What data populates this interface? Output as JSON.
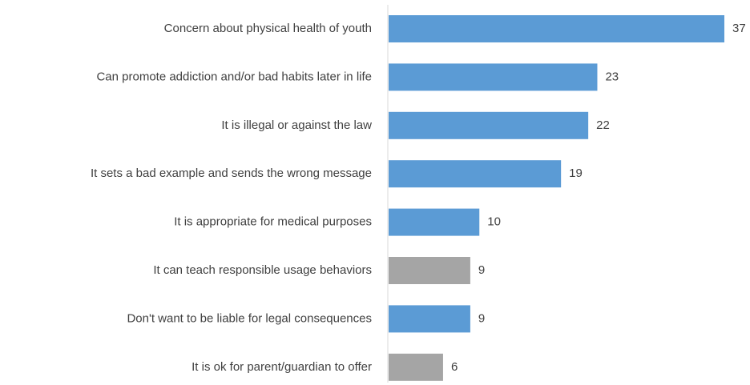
{
  "chart_data": {
    "type": "bar",
    "orientation": "horizontal",
    "categories": [
      "Concern about physical health of youth",
      "Can promote addiction and/or bad habits later in life",
      "It is illegal or against the law",
      "It sets a bad example and sends the wrong message",
      "It is appropriate for medical purposes",
      "It can teach responsible usage behaviors",
      "Don't want to be liable for legal consequences",
      "It is ok for parent/guardian to offer"
    ],
    "values": [
      37,
      23,
      22,
      19,
      10,
      9,
      9,
      6
    ],
    "bar_colors": [
      "#5b9bd5",
      "#5b9bd5",
      "#5b9bd5",
      "#5b9bd5",
      "#5b9bd5",
      "#a5a5a5",
      "#5b9bd5",
      "#a5a5a5"
    ],
    "xlim": [
      0,
      37
    ],
    "grid": false,
    "legend": "none",
    "axis_color": "#d9d9d9"
  }
}
